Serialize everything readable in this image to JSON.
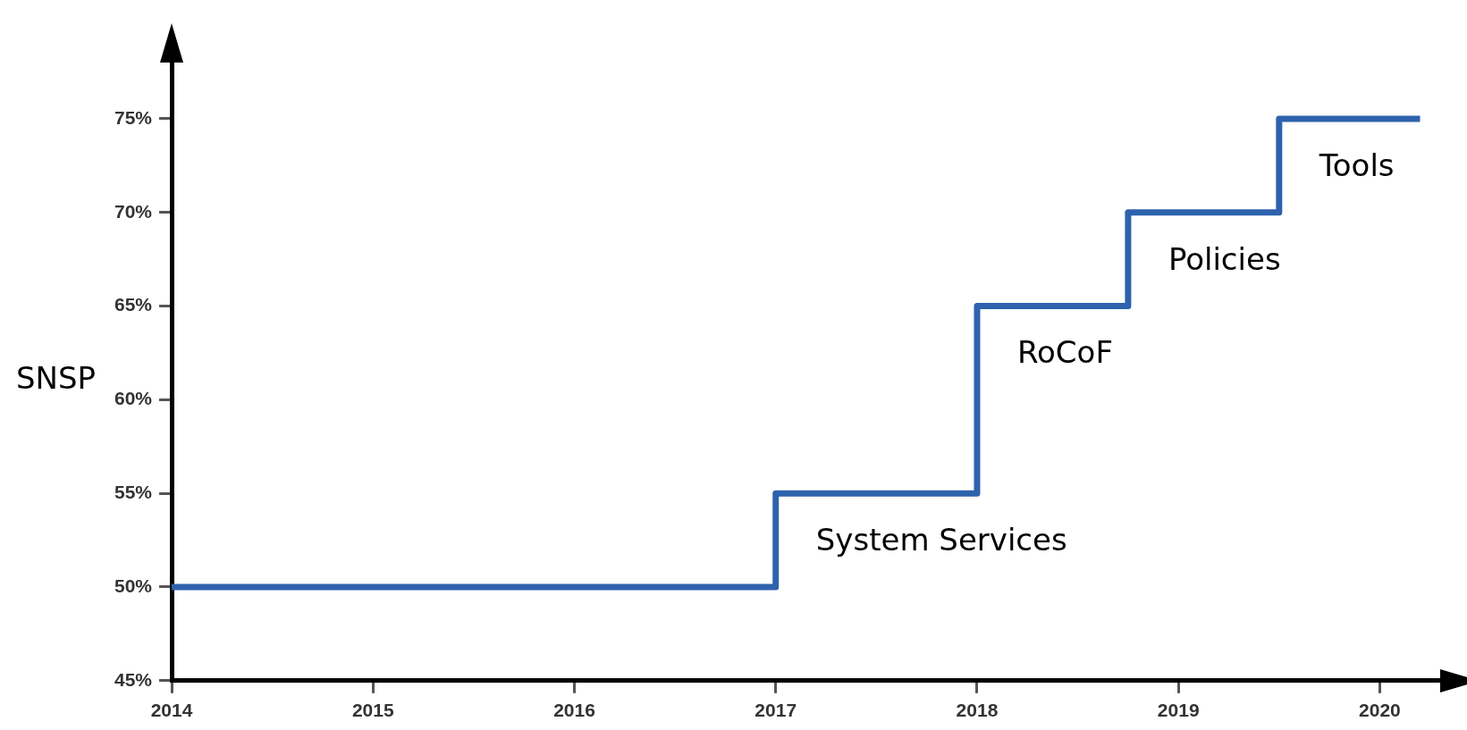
{
  "chart_data": {
    "type": "step",
    "ylabel": "SNSP",
    "x": [
      2014,
      2017,
      2018,
      2018.75,
      2019.5,
      2020.2
    ],
    "values": [
      50,
      55,
      65,
      70,
      75,
      75
    ],
    "color": "#2e62ad",
    "marker": "none",
    "xlim": [
      2014,
      2020.3
    ],
    "ylim": [
      45,
      78
    ],
    "xticks": [
      2014,
      2015,
      2016,
      2017,
      2018,
      2019,
      2020
    ],
    "yticks": [
      {
        "value": 45,
        "label": "45%"
      },
      {
        "value": 50,
        "label": "50%"
      },
      {
        "value": 55,
        "label": "55%"
      },
      {
        "value": 60,
        "label": "60%"
      },
      {
        "value": 65,
        "label": "65%"
      },
      {
        "value": 70,
        "label": "70%"
      },
      {
        "value": 75,
        "label": "75%"
      }
    ],
    "annotations": [
      "System Services",
      "RoCoF",
      "Policies",
      "Tools"
    ]
  }
}
